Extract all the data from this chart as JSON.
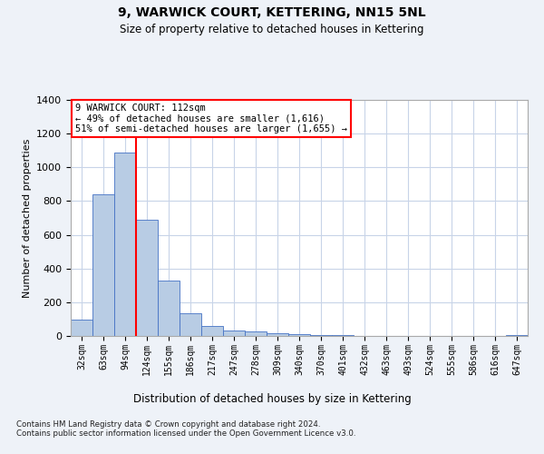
{
  "title1": "9, WARWICK COURT, KETTERING, NN15 5NL",
  "title2": "Size of property relative to detached houses in Kettering",
  "xlabel": "Distribution of detached houses by size in Kettering",
  "ylabel": "Number of detached properties",
  "categories": [
    "32sqm",
    "63sqm",
    "94sqm",
    "124sqm",
    "155sqm",
    "186sqm",
    "217sqm",
    "247sqm",
    "278sqm",
    "309sqm",
    "340sqm",
    "370sqm",
    "401sqm",
    "432sqm",
    "463sqm",
    "493sqm",
    "524sqm",
    "555sqm",
    "586sqm",
    "616sqm",
    "647sqm"
  ],
  "values": [
    95,
    840,
    1090,
    690,
    330,
    135,
    60,
    35,
    25,
    15,
    10,
    5,
    3,
    2,
    1,
    1,
    1,
    0,
    0,
    0,
    5
  ],
  "bar_color": "#b8cce4",
  "bar_edgecolor": "#4472c4",
  "vline_x": 2.5,
  "vline_color": "red",
  "annotation_text": "9 WARWICK COURT: 112sqm\n← 49% of detached houses are smaller (1,616)\n51% of semi-detached houses are larger (1,655) →",
  "annotation_box_color": "red",
  "ylim": [
    0,
    1400
  ],
  "yticks": [
    0,
    200,
    400,
    600,
    800,
    1000,
    1200,
    1400
  ],
  "footnote": "Contains HM Land Registry data © Crown copyright and database right 2024.\nContains public sector information licensed under the Open Government Licence v3.0.",
  "bg_color": "#eef2f8",
  "plot_bg_color": "#ffffff",
  "grid_color": "#c8d4e8"
}
